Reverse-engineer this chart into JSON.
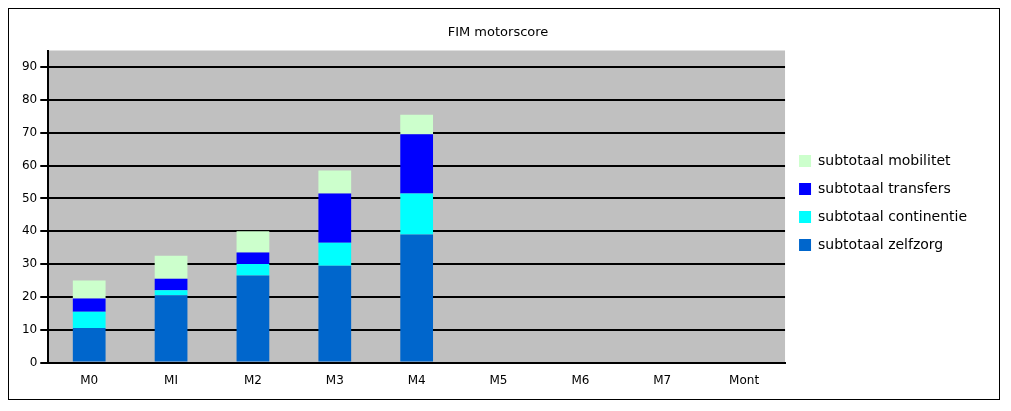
{
  "chart_data": {
    "type": "bar",
    "title": "FIM motorscore",
    "stacked": true,
    "categories": [
      "M0",
      "MI",
      "M2",
      "M3",
      "M4",
      "M5",
      "M6",
      "M7",
      "Mont"
    ],
    "series": [
      {
        "name": "subtotaal zelfzorg",
        "color": "#0066cc",
        "values": [
          10.5,
          20.5,
          26.5,
          29.5,
          39,
          null,
          null,
          null,
          null
        ]
      },
      {
        "name": "subtotaal continentie",
        "color": "#00ffff",
        "values": [
          5,
          1.5,
          3.5,
          7,
          12.5,
          null,
          null,
          null,
          null
        ]
      },
      {
        "name": "subtotaal transfers",
        "color": "#0000ff",
        "values": [
          4,
          3.5,
          3.5,
          15,
          18,
          null,
          null,
          null,
          null
        ]
      },
      {
        "name": "subtotaal mobilitet",
        "color": "#ccffcc",
        "values": [
          5.5,
          7,
          6.5,
          7,
          6,
          null,
          null,
          null,
          null
        ]
      }
    ],
    "ylim": [
      0,
      95
    ],
    "yticks": [
      0,
      10,
      20,
      30,
      40,
      50,
      60,
      70,
      80,
      90
    ],
    "grid": "y",
    "legend": "right"
  }
}
